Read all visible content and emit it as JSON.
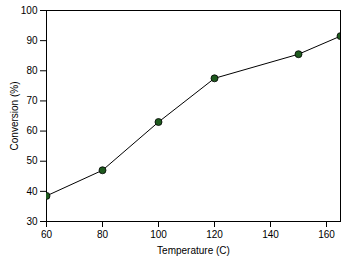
{
  "chart_data": {
    "type": "line",
    "x_label": "Temperature (C)",
    "y_label": "Conversion (%)",
    "x": [
      60,
      80,
      100,
      120,
      150,
      165
    ],
    "values": [
      38.5,
      47,
      63,
      77.5,
      85.5,
      91.5
    ],
    "color": "#1e5a1e",
    "marker": "circle",
    "xlim": [
      60,
      165
    ],
    "xticks": [
      60,
      80,
      100,
      120,
      140,
      160
    ],
    "ylim": [
      30,
      100
    ],
    "yticks": [
      30,
      40,
      50,
      60,
      70,
      80,
      90,
      100
    ],
    "grid": false
  }
}
